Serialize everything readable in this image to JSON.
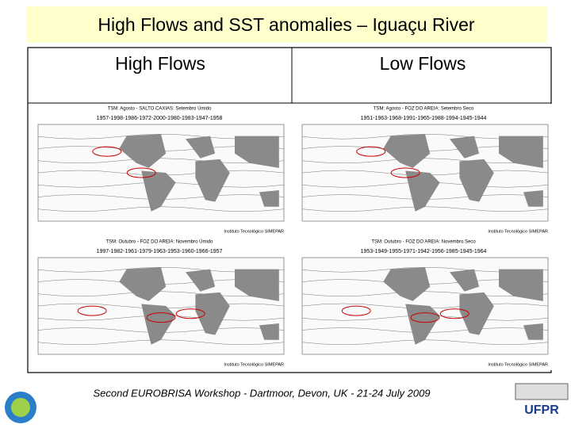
{
  "header": {
    "title": "High Flows and SST anomalies – Iguaçu River"
  },
  "columns": [
    "High Flows",
    "Low Flows"
  ],
  "maps": [
    {
      "title": "TSM: Agosto - SALTO CAXIAS: Setembro Úmido",
      "years": "1957-1998-1986-1972-2000-1980-1983-1947-1958",
      "credit": "Instituto Tecnológico SIMEPAR"
    },
    {
      "title": "TSM: Agosto - FOZ DO AREIA: Setembro Seco",
      "years": "1951-1963-1968-1991-1965-1988-1994-1945-1944",
      "credit": "Instituto Tecnológico SIMEPAR"
    },
    {
      "title": "TSM: Outubro - FOZ DO AREIA: Novembro Úmido",
      "years": "1997-1982-1961-1979-1963-1953-1960-1966-1957",
      "credit": "Instituto Tecnológico SIMEPAR"
    },
    {
      "title": "TSM: Outubro - FOZ DO AREIA: Novembro Seco",
      "years": "1953-1949-1955-1971-1942-1956-1985-1945-1964",
      "credit": "Instituto Tecnológico SIMEPAR"
    }
  ],
  "footer": {
    "text": "Second EUROBRISA Workshop - Dartmoor, Devon, UK - 21-24 July 2009",
    "logo_right": "UFPR"
  }
}
